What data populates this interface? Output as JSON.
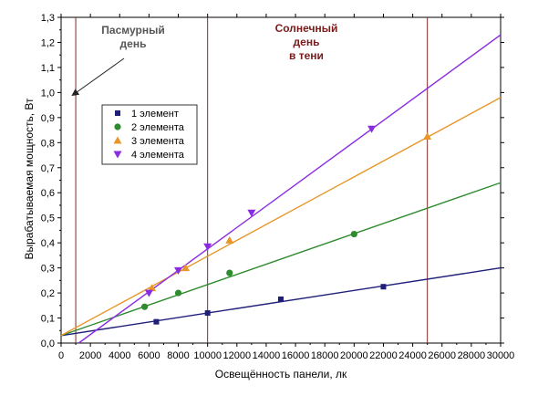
{
  "chart_data": {
    "type": "scatter",
    "title": "",
    "xlabel": "Освещённость панели, лк",
    "ylabel": "Вырабатываемая мощность, Вт",
    "xlim": [
      0,
      30000
    ],
    "ylim": [
      0,
      1.3
    ],
    "x_ticks": [
      0,
      2000,
      4000,
      6000,
      8000,
      10000,
      12000,
      14000,
      16000,
      18000,
      20000,
      22000,
      24000,
      26000,
      28000,
      30000
    ],
    "y_ticks": [
      0.0,
      0.1,
      0.2,
      0.3,
      0.4,
      0.5,
      0.6,
      0.7,
      0.8,
      0.9,
      1.0,
      1.1,
      1.2,
      1.3
    ],
    "y_tick_labels": [
      "0,0",
      "0,1",
      "0,2",
      "0,3",
      "0,4",
      "0,5",
      "0,6",
      "0,7",
      "0,8",
      "0,9",
      "1,0",
      "1,1",
      "1,2",
      "1,3"
    ],
    "grid": false,
    "legend_position": "upper-left",
    "series": [
      {
        "name": "1 элемент",
        "color": "#1f1f7a",
        "marker": "square",
        "x": [
          6500,
          10000,
          15000,
          22000
        ],
        "y": [
          0.085,
          0.12,
          0.175,
          0.225
        ],
        "fit": {
          "x": [
            0,
            30000
          ],
          "y": [
            0.03,
            0.3
          ]
        }
      },
      {
        "name": "2 элемента",
        "color": "#2e8b2e",
        "marker": "circle",
        "x": [
          5700,
          8000,
          11500,
          20000
        ],
        "y": [
          0.145,
          0.2,
          0.28,
          0.435
        ],
        "fit": {
          "x": [
            0,
            30000
          ],
          "y": [
            0.03,
            0.64
          ]
        }
      },
      {
        "name": "3 элемента",
        "color": "#e8962a",
        "marker": "triangle-up",
        "x": [
          6200,
          8500,
          11500,
          25000
        ],
        "y": [
          0.22,
          0.3,
          0.41,
          0.825
        ],
        "fit": {
          "x": [
            0,
            30000
          ],
          "y": [
            0.03,
            0.98
          ]
        }
      },
      {
        "name": "4 элемента",
        "color": "#8a2be2",
        "marker": "triangle-down",
        "x": [
          6000,
          8000,
          10000,
          13000,
          21200
        ],
        "y": [
          0.2,
          0.29,
          0.385,
          0.52,
          0.855
        ],
        "fit": {
          "x": [
            1200,
            30000
          ],
          "y": [
            0.0,
            1.23
          ]
        }
      }
    ],
    "vertical_lines": [
      {
        "x": 1000,
        "color": "#7a2a2a"
      },
      {
        "x": 10000,
        "color": "#7a2a2a"
      },
      {
        "x": 25000,
        "color": "#7a2a2a"
      }
    ],
    "annotations": [
      {
        "text_lines": [
          "Пасмурный",
          "день"
        ],
        "color": "#555555"
      },
      {
        "text_lines": [
          "Солнечный",
          "день",
          "в тени"
        ],
        "color": "#7a1a1a"
      }
    ]
  }
}
